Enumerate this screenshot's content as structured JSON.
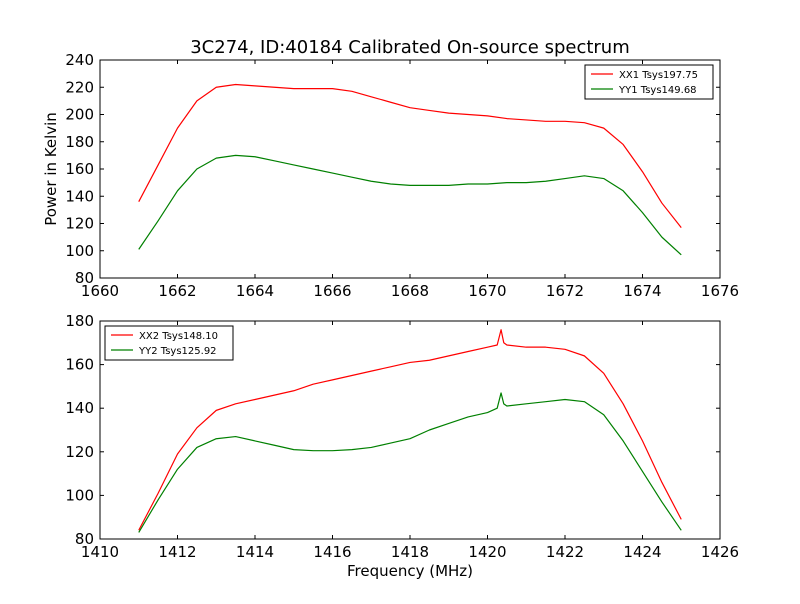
{
  "chart_data": [
    {
      "type": "line",
      "title": "3C274, ID:40184 Calibrated On-source spectrum",
      "xlabel": "",
      "ylabel": "Power in Kelvin",
      "xlim": [
        1660,
        1676
      ],
      "ylim": [
        80,
        240
      ],
      "xticks": [
        "1660",
        "1662",
        "1664",
        "1666",
        "1668",
        "1670",
        "1672",
        "1674",
        "1676"
      ],
      "yticks": [
        "80",
        "100",
        "120",
        "140",
        "160",
        "180",
        "200",
        "220",
        "240"
      ],
      "grid": false,
      "legend_position": "top-right",
      "series": [
        {
          "name": "XX1 Tsys197.75",
          "color": "#ff0000",
          "x": [
            1661.0,
            1661.5,
            1662.0,
            1662.5,
            1663.0,
            1663.5,
            1664.0,
            1664.5,
            1665.0,
            1665.5,
            1666.0,
            1666.5,
            1667.0,
            1667.5,
            1668.0,
            1668.5,
            1669.0,
            1669.5,
            1670.0,
            1670.5,
            1671.0,
            1671.5,
            1672.0,
            1672.5,
            1673.0,
            1673.5,
            1674.0,
            1674.5,
            1675.0
          ],
          "y": [
            136,
            163,
            190,
            210,
            220,
            222,
            221,
            220,
            219,
            219,
            219,
            217,
            213,
            209,
            205,
            203,
            201,
            200,
            199,
            197,
            196,
            195,
            195,
            194,
            190,
            178,
            158,
            135,
            117
          ]
        },
        {
          "name": "YY1 Tsys149.68",
          "color": "#008000",
          "x": [
            1661.0,
            1661.5,
            1662.0,
            1662.5,
            1663.0,
            1663.5,
            1664.0,
            1664.5,
            1665.0,
            1665.5,
            1666.0,
            1666.5,
            1667.0,
            1667.5,
            1668.0,
            1668.5,
            1669.0,
            1669.5,
            1670.0,
            1670.5,
            1671.0,
            1671.5,
            1672.0,
            1672.5,
            1673.0,
            1673.5,
            1674.0,
            1674.5,
            1675.0
          ],
          "y": [
            101,
            122,
            144,
            160,
            168,
            170,
            169,
            166,
            163,
            160,
            157,
            154,
            151,
            149,
            148,
            148,
            148,
            149,
            149,
            150,
            150,
            151,
            153,
            155,
            153,
            144,
            128,
            110,
            97
          ]
        }
      ]
    },
    {
      "type": "line",
      "title": "",
      "xlabel": "Frequency (MHz)",
      "ylabel": "",
      "xlim": [
        1410,
        1426
      ],
      "ylim": [
        80,
        180
      ],
      "xticks": [
        "1410",
        "1412",
        "1414",
        "1416",
        "1418",
        "1420",
        "1422",
        "1424",
        "1426"
      ],
      "yticks": [
        "80",
        "100",
        "120",
        "140",
        "160",
        "180"
      ],
      "grid": false,
      "legend_position": "top-left",
      "series": [
        {
          "name": "XX2 Tsys148.10",
          "color": "#ff0000",
          "x": [
            1411.0,
            1411.5,
            1412.0,
            1412.5,
            1413.0,
            1413.5,
            1414.0,
            1414.5,
            1415.0,
            1415.5,
            1416.0,
            1416.5,
            1417.0,
            1417.5,
            1418.0,
            1418.5,
            1419.0,
            1419.5,
            1420.0,
            1420.25,
            1420.35,
            1420.42,
            1420.5,
            1421.0,
            1421.5,
            1422.0,
            1422.5,
            1423.0,
            1423.5,
            1424.0,
            1424.5,
            1425.0
          ],
          "y": [
            84,
            101,
            119,
            131,
            139,
            142,
            144,
            146,
            148,
            151,
            153,
            155,
            157,
            159,
            161,
            162,
            164,
            166,
            168,
            169,
            176,
            170,
            169,
            168,
            168,
            167,
            164,
            156,
            142,
            125,
            106,
            89
          ]
        },
        {
          "name": "YY2 Tsys125.92",
          "color": "#008000",
          "x": [
            1411.0,
            1411.5,
            1412.0,
            1412.5,
            1413.0,
            1413.5,
            1414.0,
            1414.5,
            1415.0,
            1415.5,
            1416.0,
            1416.5,
            1417.0,
            1417.5,
            1418.0,
            1418.5,
            1419.0,
            1419.5,
            1420.0,
            1420.25,
            1420.35,
            1420.42,
            1420.5,
            1421.0,
            1421.5,
            1422.0,
            1422.5,
            1423.0,
            1423.5,
            1424.0,
            1424.5,
            1425.0
          ],
          "y": [
            83,
            98,
            112,
            122,
            126,
            127,
            125,
            123,
            121,
            120.5,
            120.5,
            121,
            122,
            124,
            126,
            130,
            133,
            136,
            138,
            140,
            147,
            142,
            141,
            142,
            143,
            144,
            143,
            137,
            125,
            111,
            97,
            84
          ]
        }
      ]
    }
  ]
}
